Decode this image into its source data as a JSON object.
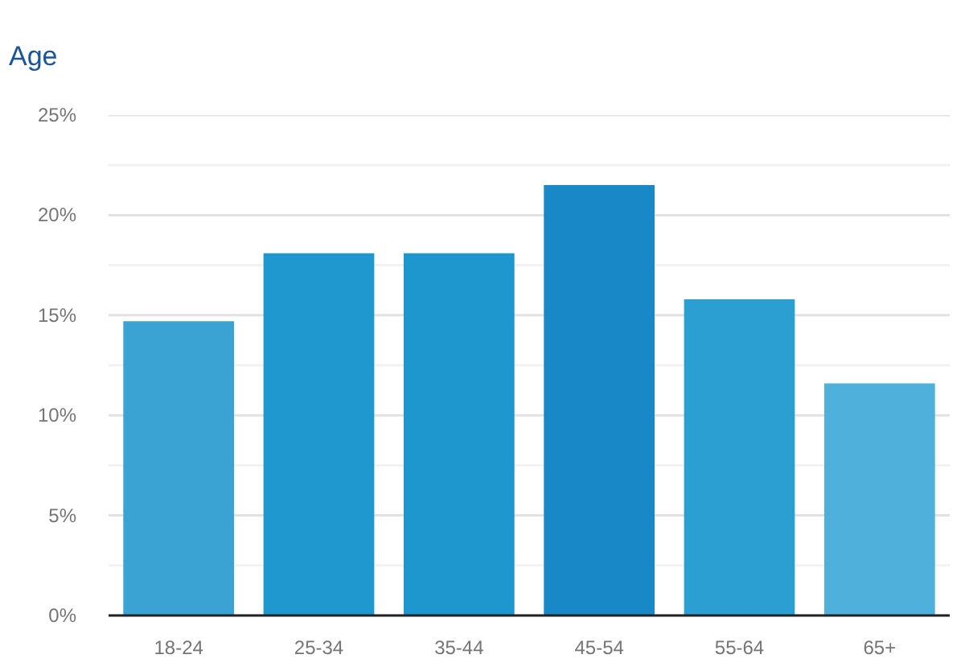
{
  "chart_data": {
    "type": "bar",
    "title": "Age",
    "categories": [
      "18-24",
      "25-34",
      "35-44",
      "45-54",
      "55-64",
      "65+"
    ],
    "values": [
      14.7,
      18.1,
      18.1,
      21.5,
      15.8,
      11.6
    ],
    "colors": [
      "#3aa3d4",
      "#1f97cf",
      "#1e97cf",
      "#1888c7",
      "#2c9fd2",
      "#4eb0db"
    ],
    "ylim": [
      0,
      25
    ],
    "yticks": [
      {
        "value": 0,
        "label": "0%"
      },
      {
        "value": 2.5,
        "label": null
      },
      {
        "value": 5,
        "label": "5%"
      },
      {
        "value": 7.5,
        "label": null
      },
      {
        "value": 10,
        "label": "10%"
      },
      {
        "value": 12.5,
        "label": null
      },
      {
        "value": 15,
        "label": "15%"
      },
      {
        "value": 17.5,
        "label": null
      },
      {
        "value": 20,
        "label": "20%"
      },
      {
        "value": 22.5,
        "label": null
      },
      {
        "value": 25,
        "label": "25%"
      }
    ],
    "grid": "y",
    "legend": false
  }
}
